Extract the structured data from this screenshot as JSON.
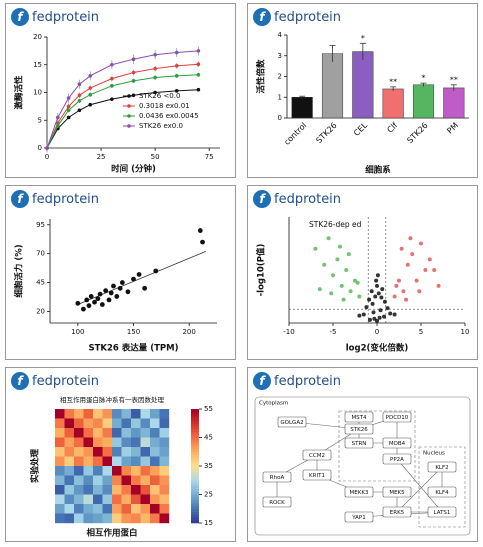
{
  "brand": "fedprotein",
  "brand_icon": "f",
  "chart_data": [
    {
      "type": "line",
      "y_label": "激酶活性",
      "x_label": "时间 (分钟)",
      "xlim": [
        0,
        80
      ],
      "xticks": [
        0,
        25,
        50,
        75
      ],
      "ylim": [
        0,
        20
      ],
      "yticks": [
        0,
        5,
        10,
        15,
        20
      ],
      "x": [
        0,
        5,
        10,
        15,
        20,
        30,
        40,
        50,
        60,
        70
      ],
      "series": [
        {
          "name": "STK26 <0.0",
          "color": "#111111",
          "values": [
            0,
            3.5,
            5.5,
            6.8,
            7.8,
            8.8,
            9.5,
            10,
            10.3,
            10.5
          ],
          "errors": [
            0.3,
            0.3,
            0.3,
            0.3,
            0.3,
            0.3,
            0.3,
            0.3,
            0.3,
            0.3
          ]
        },
        {
          "name": "0.3018 ex0.01",
          "color": "#d9453b",
          "values": [
            0,
            4.5,
            7.5,
            9.5,
            10.8,
            12.5,
            13.6,
            14.3,
            14.8,
            15.1
          ],
          "errors": [
            0.5,
            0.5,
            0.5,
            0.5,
            0.5,
            0.5,
            0.5,
            0.5,
            0.5,
            0.5
          ]
        },
        {
          "name": "0.0436 ex0.0045",
          "color": "#2e9e3e",
          "values": [
            0,
            4,
            6.8,
            8.5,
            9.6,
            11.2,
            12.1,
            12.7,
            13,
            13.2
          ],
          "errors": [
            0.4,
            0.4,
            0.4,
            0.4,
            0.4,
            0.4,
            0.4,
            0.4,
            0.4,
            0.4
          ]
        },
        {
          "name": "STK26 ex0.0",
          "color": "#8b4fb3",
          "values": [
            0,
            5.5,
            9,
            11.5,
            13,
            15,
            16,
            16.8,
            17.2,
            17.5
          ],
          "errors": [
            0.8,
            0.8,
            0.8,
            0.8,
            0.8,
            0.8,
            0.8,
            0.8,
            0.8,
            0.8
          ]
        }
      ]
    },
    {
      "type": "bar",
      "y_label": "活性倍数",
      "x_label": "细胞系",
      "ylim": [
        0,
        4
      ],
      "yticks": [
        0,
        1,
        2,
        3,
        4
      ],
      "categories": [
        "control",
        "STK26",
        "CEL",
        "Clf",
        "STK26",
        "PM"
      ],
      "values": [
        1.0,
        3.1,
        3.2,
        1.4,
        1.6,
        1.45
      ],
      "errors": [
        0.05,
        0.4,
        0.4,
        0.1,
        0.08,
        0.15
      ],
      "colors": [
        "#111111",
        "#a0a0a0",
        "#8b5fbf",
        "#f07070",
        "#55b560",
        "#c05cc8"
      ],
      "annotations": [
        null,
        null,
        "*",
        "**",
        "*",
        "**"
      ]
    },
    {
      "type": "scatter",
      "y_label": "细胞活力 (%)",
      "x_label": "STK26 表达量 (TPM)",
      "xlim": [
        75,
        225
      ],
      "xticks": [
        100,
        150,
        200
      ],
      "ylim": [
        10,
        100
      ],
      "yticks": [
        20,
        45,
        70,
        95
      ],
      "color": "#111111",
      "x": [
        100,
        105,
        108,
        110,
        112,
        115,
        118,
        120,
        122,
        125,
        128,
        130,
        132,
        135,
        138,
        140,
        145,
        150,
        155,
        160,
        170,
        210,
        212
      ],
      "y": [
        27,
        22,
        30,
        25,
        33,
        28,
        31,
        35,
        26,
        38,
        30,
        36,
        42,
        33,
        40,
        45,
        37,
        48,
        52,
        40,
        55,
        90,
        80
      ],
      "trend": {
        "x": [
          100,
          215
        ],
        "y": [
          26,
          72
        ]
      }
    },
    {
      "type": "volcano",
      "y_label": "-log10(P值)",
      "x_label": "log2(变化倍数)",
      "annotation": "STK26-dep ed",
      "xlim": [
        -10,
        10
      ],
      "xticks": [
        -10,
        -5,
        0,
        5,
        10
      ],
      "ylim": [
        0,
        10
      ],
      "thresholds": {
        "x": [
          -1,
          1
        ],
        "y": 1.3
      },
      "series": [
        {
          "color": "#111111",
          "x": [
            -1.2,
            -0.9,
            -0.6,
            -0.4,
            -0.2,
            0,
            0.2,
            0.4,
            0.6,
            0.9,
            1.2,
            -1.5,
            1.5,
            -0.3,
            0.3,
            -0.8,
            0.8,
            0,
            -0.1,
            0.1,
            -2,
            2,
            -0.5,
            0.5
          ],
          "y": [
            1.5,
            2.2,
            3,
            1,
            2.5,
            3.5,
            2.8,
            1.2,
            3.2,
            2,
            1.4,
            0.8,
            0.9,
            0.4,
            0.5,
            0.3,
            0.6,
            0.2,
            4,
            4.5,
            0.7,
            0.8,
            1.8,
            2.4
          ]
        },
        {
          "color": "#5cb85c",
          "x": [
            -7,
            -6,
            -5.5,
            -5,
            -4.5,
            -4,
            -3.5,
            -3,
            -2.5,
            -2,
            -6.5,
            -4.2,
            -3.2,
            -2.2,
            -5.2,
            -3.8
          ],
          "y": [
            7,
            5.5,
            8,
            4.5,
            6,
            3.5,
            5,
            3,
            4,
            2.5,
            3.2,
            7.2,
            6.5,
            3.8,
            2.8,
            2.2
          ]
        },
        {
          "color": "#e05a5a",
          "x": [
            2,
            2.5,
            3,
            3.5,
            4,
            4.5,
            5,
            5.5,
            6,
            7,
            2.8,
            3.8,
            4.8,
            6.5,
            2.2,
            3.3
          ],
          "y": [
            2.5,
            4,
            3,
            5.5,
            6.5,
            4,
            7.5,
            5,
            6,
            3.5,
            7,
            8,
            3,
            5,
            3.5,
            2.2
          ]
        }
      ]
    },
    {
      "type": "heatmap",
      "title": "相互作用蛋白脉冲系有一表因数处理",
      "y_label": "实验处理",
      "x_label": "相互作用蛋白",
      "clim": [
        15,
        55
      ],
      "cticks": [
        15,
        25,
        35,
        45,
        55
      ],
      "matrix": [
        [
          55,
          44,
          40,
          46,
          38,
          42,
          22,
          26,
          18,
          30,
          24,
          20
        ],
        [
          44,
          55,
          46,
          41,
          43,
          37,
          25,
          20,
          28,
          22,
          30,
          19
        ],
        [
          40,
          46,
          55,
          45,
          39,
          44,
          19,
          27,
          23,
          26,
          21,
          29
        ],
        [
          46,
          41,
          45,
          55,
          42,
          40,
          28,
          22,
          20,
          31,
          25,
          23
        ],
        [
          38,
          43,
          39,
          42,
          55,
          45,
          21,
          29,
          26,
          19,
          27,
          24
        ],
        [
          42,
          37,
          44,
          40,
          45,
          55,
          30,
          24,
          22,
          28,
          20,
          26
        ],
        [
          22,
          25,
          19,
          28,
          21,
          30,
          55,
          43,
          39,
          45,
          41,
          37
        ],
        [
          26,
          20,
          27,
          22,
          29,
          24,
          43,
          55,
          44,
          40,
          46,
          42
        ],
        [
          18,
          28,
          23,
          20,
          26,
          22,
          39,
          44,
          55,
          47,
          38,
          43
        ],
        [
          30,
          22,
          26,
          31,
          19,
          28,
          45,
          40,
          47,
          55,
          42,
          39
        ],
        [
          24,
          30,
          21,
          25,
          27,
          20,
          41,
          46,
          38,
          42,
          55,
          44
        ],
        [
          20,
          19,
          29,
          23,
          24,
          26,
          37,
          42,
          43,
          39,
          44,
          55
        ]
      ]
    }
  ],
  "diagram": {
    "regions": [
      "Cytoplasm",
      "Nucleus"
    ],
    "nodes": [
      "STK26",
      "MST4",
      "PDCD10",
      "STRN",
      "MOB4",
      "PP2A",
      "CCM2",
      "KRIT1",
      "MEKK3",
      "MEK5",
      "ERK5",
      "KLF2",
      "KLF4",
      "YAP1",
      "LATS1",
      "RhoA",
      "ROCK",
      "GOLGA2"
    ]
  }
}
